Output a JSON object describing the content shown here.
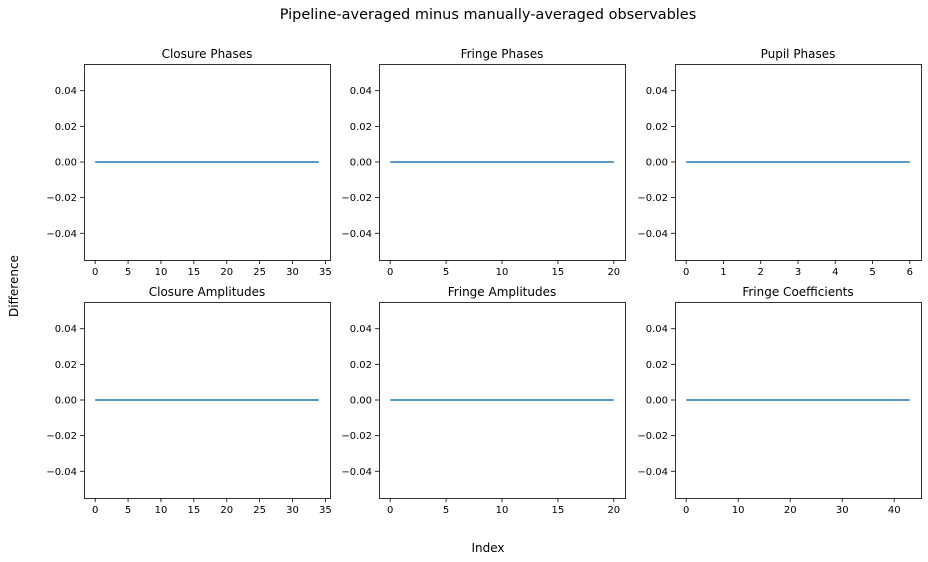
{
  "figure": {
    "suptitle": "Pipeline-averaged minus manually-averaged observables",
    "xlabel": "Index",
    "ylabel": "Difference",
    "line_color": "#1f77b4"
  },
  "chart_data": [
    {
      "type": "line",
      "title": "Closure Phases",
      "x_range": [
        0,
        34
      ],
      "y_value": 0.0,
      "xlim": [
        -1.7,
        35.7
      ],
      "ylim": [
        -0.055,
        0.055
      ],
      "xticks": [
        0,
        5,
        10,
        15,
        20,
        25,
        30,
        35
      ],
      "yticks": [
        0.04,
        0.02,
        0.0,
        -0.02,
        -0.04
      ],
      "xtick_labels": [
        "0",
        "5",
        "10",
        "15",
        "20",
        "25",
        "30",
        "35"
      ],
      "ytick_labels": [
        "0.04",
        "0.02",
        "0.00",
        "−0.02",
        "−0.04"
      ],
      "grid": false
    },
    {
      "type": "line",
      "title": "Fringe Phases",
      "x_range": [
        0,
        20
      ],
      "y_value": 0.0,
      "xlim": [
        -1.0,
        21.0
      ],
      "ylim": [
        -0.055,
        0.055
      ],
      "xticks": [
        0,
        5,
        10,
        15,
        20
      ],
      "yticks": [
        0.04,
        0.02,
        0.0,
        -0.02,
        -0.04
      ],
      "xtick_labels": [
        "0",
        "5",
        "10",
        "15",
        "20"
      ],
      "ytick_labels": [
        "0.04",
        "0.02",
        "0.00",
        "−0.02",
        "−0.04"
      ],
      "grid": false
    },
    {
      "type": "line",
      "title": "Pupil Phases",
      "x_range": [
        0,
        6
      ],
      "y_value": 0.0,
      "xlim": [
        -0.3,
        6.3
      ],
      "ylim": [
        -0.055,
        0.055
      ],
      "xticks": [
        0,
        1,
        2,
        3,
        4,
        5,
        6
      ],
      "yticks": [
        0.04,
        0.02,
        0.0,
        -0.02,
        -0.04
      ],
      "xtick_labels": [
        "0",
        "1",
        "2",
        "3",
        "4",
        "5",
        "6"
      ],
      "ytick_labels": [
        "0.04",
        "0.02",
        "0.00",
        "−0.02",
        "−0.04"
      ],
      "grid": false
    },
    {
      "type": "line",
      "title": "Closure Amplitudes",
      "x_range": [
        0,
        34
      ],
      "y_value": 0.0,
      "xlim": [
        -1.7,
        35.7
      ],
      "ylim": [
        -0.055,
        0.055
      ],
      "xticks": [
        0,
        5,
        10,
        15,
        20,
        25,
        30,
        35
      ],
      "yticks": [
        0.04,
        0.02,
        0.0,
        -0.02,
        -0.04
      ],
      "xtick_labels": [
        "0",
        "5",
        "10",
        "15",
        "20",
        "25",
        "30",
        "35"
      ],
      "ytick_labels": [
        "0.04",
        "0.02",
        "0.00",
        "−0.02",
        "−0.04"
      ],
      "grid": false
    },
    {
      "type": "line",
      "title": "Fringe Amplitudes",
      "x_range": [
        0,
        20
      ],
      "y_value": 0.0,
      "xlim": [
        -1.0,
        21.0
      ],
      "ylim": [
        -0.055,
        0.055
      ],
      "xticks": [
        0,
        5,
        10,
        15,
        20
      ],
      "yticks": [
        0.04,
        0.02,
        0.0,
        -0.02,
        -0.04
      ],
      "xtick_labels": [
        "0",
        "5",
        "10",
        "15",
        "20"
      ],
      "ytick_labels": [
        "0.04",
        "0.02",
        "0.00",
        "−0.02",
        "−0.04"
      ],
      "grid": false
    },
    {
      "type": "line",
      "title": "Fringe Coefficients",
      "x_range": [
        0,
        43
      ],
      "y_value": 0.0,
      "xlim": [
        -2.15,
        45.15
      ],
      "ylim": [
        -0.055,
        0.055
      ],
      "xticks": [
        0,
        10,
        20,
        30,
        40
      ],
      "yticks": [
        0.04,
        0.02,
        0.0,
        -0.02,
        -0.04
      ],
      "xtick_labels": [
        "0",
        "10",
        "20",
        "30",
        "40"
      ],
      "ytick_labels": [
        "0.04",
        "0.02",
        "0.00",
        "−0.02",
        "−0.04"
      ],
      "grid": false
    }
  ]
}
